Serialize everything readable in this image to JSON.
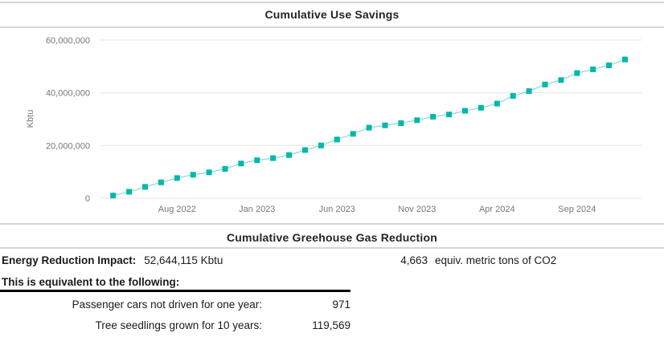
{
  "sections": {
    "use_savings_title": "Cumulative Use Savings",
    "ghg_title": "Cumulative Greehouse Gas Reduction"
  },
  "impact": {
    "label": "Energy Reduction Impact:",
    "value": "52,644,115 Kbtu",
    "co2_value": "4,663",
    "co2_label": "equiv. metric tons of CO2"
  },
  "equivalents": {
    "heading": "This is equivalent to the following:",
    "rows": [
      {
        "label": "Passenger cars not driven for one year:",
        "value": "971"
      },
      {
        "label": "Tree seedlings grown for 10 years:",
        "value": "119,569"
      }
    ]
  },
  "chart_data": {
    "type": "line",
    "title": "Cumulative Use Savings",
    "xlabel": "",
    "ylabel": "Kbtu",
    "marker": "square",
    "color": "#01B8AA",
    "grid": true,
    "legend": "none",
    "ylim": [
      0,
      60000000
    ],
    "yticks": [
      0,
      20000000,
      40000000,
      60000000
    ],
    "ytick_labels": [
      "0",
      "20,000,000",
      "40,000,000",
      "60,000,000"
    ],
    "xtick_labels": [
      "Aug 2022",
      "Jan 2023",
      "Jun 2023",
      "Nov 2023",
      "Apr 2024",
      "Sep 2024"
    ],
    "xtick_indices": [
      4,
      9,
      14,
      19,
      24,
      29
    ],
    "x": [
      "Apr 2022",
      "May 2022",
      "Jun 2022",
      "Jul 2022",
      "Aug 2022",
      "Sep 2022",
      "Oct 2022",
      "Nov 2022",
      "Dec 2022",
      "Jan 2023",
      "Feb 2023",
      "Mar 2023",
      "Apr 2023",
      "May 2023",
      "Jun 2023",
      "Jul 2023",
      "Aug 2023",
      "Sep 2023",
      "Oct 2023",
      "Nov 2023",
      "Dec 2023",
      "Jan 2024",
      "Feb 2024",
      "Mar 2024",
      "Apr 2024",
      "May 2024",
      "Jun 2024",
      "Jul 2024",
      "Aug 2024",
      "Sep 2024",
      "Oct 2024",
      "Nov 2024",
      "Dec 2024"
    ],
    "values": [
      1000000,
      2450000,
      4300000,
      6000000,
      7650000,
      8900000,
      9800000,
      11100000,
      13150000,
      14400000,
      15200000,
      16350000,
      18250000,
      20000000,
      22250000,
      24400000,
      26750000,
      27650000,
      28450000,
      29600000,
      30900000,
      31750000,
      33150000,
      34300000,
      35900000,
      38800000,
      40600000,
      43150000,
      44800000,
      47450000,
      48900000,
      50400000,
      52644115
    ]
  },
  "style": {
    "accent_color": "#01B8AA",
    "axis_text_color": "#777777",
    "gridline_color": "#e4e4e4",
    "divider_color": "#d6d6d6"
  }
}
